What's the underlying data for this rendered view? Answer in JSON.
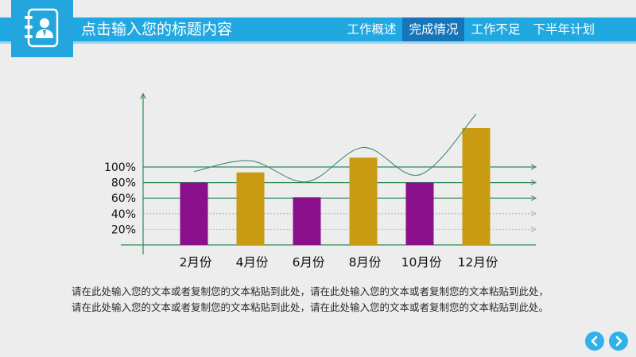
{
  "header": {
    "title": "点击输入您的标题内容",
    "logo_icon": "contacts-book-icon",
    "tabs": [
      {
        "label": "工作概述",
        "active": false
      },
      {
        "label": "完成情况",
        "active": true
      },
      {
        "label": "工作不足",
        "active": false
      },
      {
        "label": "下半年计划",
        "active": false
      }
    ],
    "bar_color": "#21a8e0",
    "active_tab_color": "#1575b8"
  },
  "chart_data": {
    "type": "bar",
    "title": "",
    "xlabel": "",
    "ylabel": "",
    "categories": [
      "2月份",
      "4月份",
      "6月份",
      "8月份",
      "10月份",
      "12月份"
    ],
    "values": [
      80,
      93,
      61,
      112,
      80,
      150
    ],
    "colors": [
      "#8a0f8a",
      "#c89b13",
      "#8a0f8a",
      "#c89b13",
      "#8a0f8a",
      "#c89b13"
    ],
    "trend_line": [
      {
        "x": "2月份",
        "y": 94
      },
      {
        "x": "4月份",
        "y": 108
      },
      {
        "x": "6月份",
        "y": 81
      },
      {
        "x": "8月份",
        "y": 125
      },
      {
        "x": "10月份",
        "y": 90
      },
      {
        "x": "12月份",
        "y": 168
      }
    ],
    "y_tick_labels": [
      "20%",
      "40%",
      "60%",
      "80%",
      "100%"
    ],
    "y_ticks": [
      20,
      40,
      60,
      80,
      100
    ],
    "ylim": [
      0,
      160
    ],
    "grid": true
  },
  "caption": {
    "line1": "请在此处输入您的文本或者复制您的文本粘贴到此处，请在此处输入您的文本或者复制您的文本粘贴到此处，",
    "line2": "请在此处输入您的文本或者复制您的文本粘贴到此处，请在此处输入您的文本或者复制您的文本粘贴到此处。"
  },
  "navigation": {
    "prev_icon": "chevron-left-icon",
    "next_icon": "chevron-right-icon",
    "color": "#2fb2ea"
  }
}
